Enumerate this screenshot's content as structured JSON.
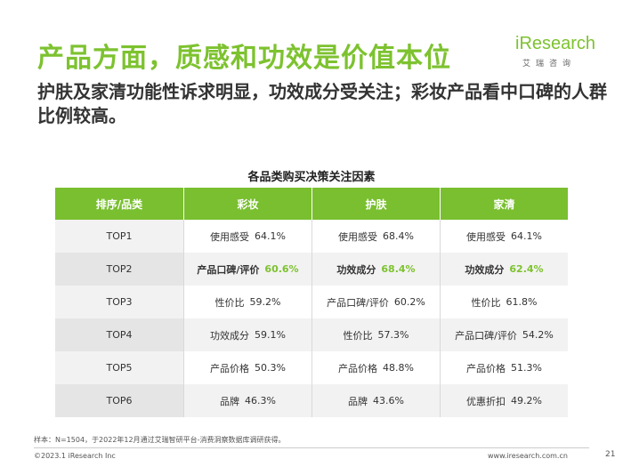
{
  "header": {
    "title": "产品方面，质感和功效是价值本位",
    "subtitle": "护肤及家清功能性诉求明显，功效成分受关注；彩妆产品看中口碑的人群比例较高。"
  },
  "logo": {
    "text": "iResearch",
    "cn": "艾瑞咨询"
  },
  "table": {
    "title": "各品类购买决策关注因素",
    "headers": [
      "排序/品类",
      "彩妆",
      "护肤",
      "家清"
    ],
    "rows": [
      {
        "rank": "TOP1",
        "cells": [
          {
            "label": "使用感受",
            "pct": "64.1%"
          },
          {
            "label": "使用感受",
            "pct": "68.4%"
          },
          {
            "label": "使用感受",
            "pct": "64.1%"
          }
        ]
      },
      {
        "rank": "TOP2",
        "cells": [
          {
            "label": "产品口碑/评价",
            "pct": "60.6%"
          },
          {
            "label": "功效成分",
            "pct": "68.4%"
          },
          {
            "label": "功效成分",
            "pct": "62.4%"
          }
        ]
      },
      {
        "rank": "TOP3",
        "cells": [
          {
            "label": "性价比",
            "pct": "59.2%"
          },
          {
            "label": "产品口碑/评价",
            "pct": "60.2%"
          },
          {
            "label": "性价比",
            "pct": "61.8%"
          }
        ]
      },
      {
        "rank": "TOP4",
        "cells": [
          {
            "label": "功效成分",
            "pct": "59.1%"
          },
          {
            "label": "性价比",
            "pct": "57.3%"
          },
          {
            "label": "产品口碑/评价",
            "pct": "54.2%"
          }
        ]
      },
      {
        "rank": "TOP5",
        "cells": [
          {
            "label": "产品价格",
            "pct": "50.3%"
          },
          {
            "label": "产品价格",
            "pct": "48.8%"
          },
          {
            "label": "产品价格",
            "pct": "51.3%"
          }
        ]
      },
      {
        "rank": "TOP6",
        "cells": [
          {
            "label": "品牌",
            "pct": "46.3%"
          },
          {
            "label": "品牌",
            "pct": "43.6%"
          },
          {
            "label": "优惠折扣",
            "pct": "49.2%"
          }
        ]
      }
    ]
  },
  "footer": {
    "note": "样本：N=1504，于2022年12月通过艾瑞智研平台-消费洞察数据库调研获得。",
    "copyright": "©2023.1 iResearch Inc",
    "website": "www.iresearch.com.cn",
    "page": "21"
  },
  "colors": {
    "accent": "#7dc22f",
    "header_fill": "#79bf2f"
  }
}
